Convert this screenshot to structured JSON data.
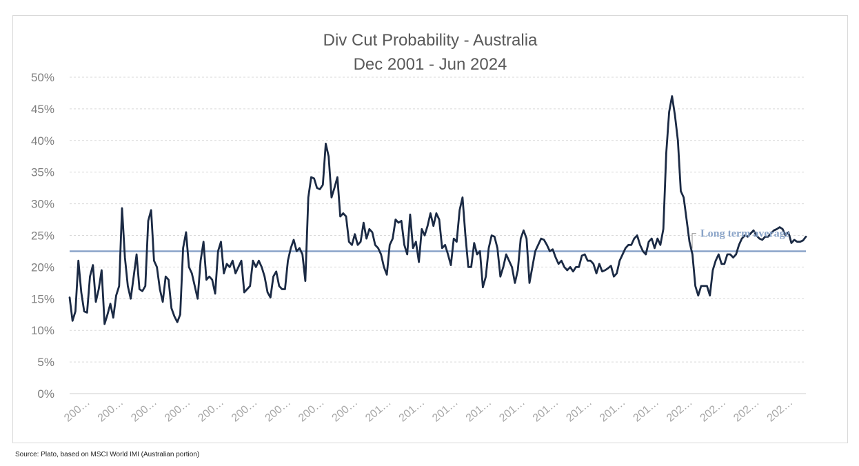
{
  "chart_data": {
    "type": "line",
    "title": "Div Cut Probability - Australia",
    "subtitle": "Dec 2001 - Jun 2024",
    "xlabel": "",
    "ylabel": "",
    "ylim": [
      0,
      50
    ],
    "y_ticks": [
      0,
      5,
      10,
      15,
      20,
      25,
      30,
      35,
      40,
      45,
      50
    ],
    "y_tick_labels": [
      "0%",
      "5%",
      "10%",
      "15%",
      "20%",
      "25%",
      "30%",
      "35%",
      "40%",
      "45%",
      "50%"
    ],
    "x_tick_labels": [
      "200…",
      "200…",
      "200…",
      "200…",
      "200…",
      "200…",
      "200…",
      "200…",
      "200…",
      "201…",
      "201…",
      "201…",
      "201…",
      "201…",
      "201…",
      "201…",
      "201…",
      "201…",
      "202…",
      "202…",
      "202…",
      "202…"
    ],
    "grid": true,
    "series": [
      {
        "name": "Div cut probability",
        "color": "#1b2a44",
        "anchors": [
          [
            0,
            15.2
          ],
          [
            2,
            11.5
          ],
          [
            4,
            13.0
          ],
          [
            6,
            21.0
          ],
          [
            8,
            16.0
          ],
          [
            10,
            13.0
          ],
          [
            12,
            12.8
          ],
          [
            14,
            18.5
          ],
          [
            16,
            20.3
          ],
          [
            18,
            14.5
          ],
          [
            20,
            16.5
          ],
          [
            22,
            19.5
          ],
          [
            24,
            11.0
          ],
          [
            26,
            12.5
          ],
          [
            28,
            14.2
          ],
          [
            30,
            12.0
          ],
          [
            32,
            15.5
          ],
          [
            34,
            17.0
          ],
          [
            36,
            29.3
          ],
          [
            38,
            21.5
          ],
          [
            40,
            17.0
          ],
          [
            42,
            15.0
          ],
          [
            44,
            18.5
          ],
          [
            46,
            22.0
          ],
          [
            48,
            16.5
          ],
          [
            50,
            16.2
          ],
          [
            52,
            17.0
          ],
          [
            54,
            27.3
          ],
          [
            56,
            29.0
          ],
          [
            58,
            21.0
          ],
          [
            60,
            20.0
          ],
          [
            62,
            16.5
          ],
          [
            64,
            14.5
          ],
          [
            66,
            18.5
          ],
          [
            68,
            18.0
          ],
          [
            70,
            13.5
          ],
          [
            72,
            12.2
          ],
          [
            74,
            11.3
          ],
          [
            76,
            12.5
          ],
          [
            78,
            23.0
          ],
          [
            80,
            25.5
          ],
          [
            82,
            20.0
          ],
          [
            84,
            19.0
          ],
          [
            86,
            17.0
          ],
          [
            88,
            15.0
          ],
          [
            90,
            21.0
          ],
          [
            92,
            24.0
          ],
          [
            94,
            18.0
          ],
          [
            96,
            18.5
          ],
          [
            98,
            18.0
          ],
          [
            100,
            15.8
          ],
          [
            102,
            22.5
          ],
          [
            104,
            24.0
          ],
          [
            106,
            19.0
          ],
          [
            108,
            20.5
          ],
          [
            110,
            20.0
          ],
          [
            112,
            21.0
          ],
          [
            114,
            19.0
          ],
          [
            116,
            20.0
          ],
          [
            118,
            21.0
          ],
          [
            120,
            16.0
          ],
          [
            122,
            16.5
          ],
          [
            124,
            17.0
          ],
          [
            126,
            21.0
          ],
          [
            128,
            20.0
          ],
          [
            130,
            21.0
          ],
          [
            132,
            20.0
          ],
          [
            134,
            18.5
          ],
          [
            136,
            16.0
          ],
          [
            138,
            15.2
          ],
          [
            140,
            18.5
          ],
          [
            142,
            19.3
          ],
          [
            144,
            17.0
          ],
          [
            146,
            16.5
          ],
          [
            148,
            16.5
          ],
          [
            150,
            21.0
          ],
          [
            152,
            23.0
          ],
          [
            154,
            24.3
          ],
          [
            156,
            22.5
          ],
          [
            158,
            23.0
          ],
          [
            160,
            22.0
          ],
          [
            162,
            17.8
          ],
          [
            164,
            31.0
          ],
          [
            166,
            34.2
          ],
          [
            168,
            34.0
          ],
          [
            170,
            32.5
          ],
          [
            172,
            32.3
          ],
          [
            174,
            33.0
          ],
          [
            176,
            39.5
          ],
          [
            178,
            37.5
          ],
          [
            180,
            31.0
          ],
          [
            182,
            32.5
          ],
          [
            184,
            34.2
          ],
          [
            186,
            28.0
          ],
          [
            188,
            28.5
          ],
          [
            190,
            28.0
          ],
          [
            192,
            24.0
          ],
          [
            194,
            23.5
          ],
          [
            196,
            25.2
          ],
          [
            198,
            23.5
          ],
          [
            200,
            24.0
          ],
          [
            202,
            27.0
          ],
          [
            204,
            24.5
          ],
          [
            206,
            26.0
          ],
          [
            208,
            25.5
          ],
          [
            210,
            23.5
          ],
          [
            212,
            23.0
          ],
          [
            214,
            22.0
          ],
          [
            216,
            20.0
          ],
          [
            218,
            18.8
          ],
          [
            220,
            23.5
          ],
          [
            222,
            24.5
          ],
          [
            224,
            27.5
          ],
          [
            226,
            27.0
          ],
          [
            228,
            27.3
          ],
          [
            230,
            23.5
          ],
          [
            232,
            22.0
          ],
          [
            234,
            28.3
          ],
          [
            236,
            23.0
          ],
          [
            238,
            24.0
          ],
          [
            240,
            20.8
          ],
          [
            242,
            26.0
          ],
          [
            244,
            25.0
          ],
          [
            246,
            26.5
          ],
          [
            248,
            28.5
          ],
          [
            250,
            26.5
          ],
          [
            252,
            28.5
          ],
          [
            254,
            27.5
          ],
          [
            256,
            23.0
          ],
          [
            258,
            23.5
          ],
          [
            260,
            22.0
          ],
          [
            262,
            20.3
          ],
          [
            264,
            24.5
          ],
          [
            266,
            24.0
          ],
          [
            268,
            29.0
          ],
          [
            270,
            31.0
          ],
          [
            272,
            25.0
          ],
          [
            274,
            20.0
          ],
          [
            276,
            20.0
          ],
          [
            278,
            23.8
          ],
          [
            280,
            22.0
          ],
          [
            282,
            22.5
          ],
          [
            284,
            16.8
          ],
          [
            286,
            18.5
          ],
          [
            288,
            23.0
          ],
          [
            290,
            25.0
          ],
          [
            292,
            24.8
          ],
          [
            294,
            23.0
          ],
          [
            296,
            18.5
          ],
          [
            298,
            20.0
          ],
          [
            300,
            22.0
          ],
          [
            302,
            21.0
          ],
          [
            304,
            20.0
          ],
          [
            306,
            17.5
          ],
          [
            308,
            19.5
          ],
          [
            310,
            24.5
          ],
          [
            312,
            25.8
          ],
          [
            314,
            24.5
          ],
          [
            316,
            17.5
          ],
          [
            318,
            20.0
          ],
          [
            320,
            22.5
          ],
          [
            322,
            23.5
          ],
          [
            324,
            24.5
          ],
          [
            326,
            24.3
          ],
          [
            328,
            23.5
          ],
          [
            330,
            22.5
          ],
          [
            332,
            22.8
          ],
          [
            334,
            21.5
          ],
          [
            336,
            20.5
          ],
          [
            338,
            21.0
          ],
          [
            340,
            20.0
          ],
          [
            342,
            19.5
          ],
          [
            344,
            20.0
          ],
          [
            346,
            19.3
          ],
          [
            348,
            20.0
          ],
          [
            350,
            20.0
          ],
          [
            352,
            21.8
          ],
          [
            354,
            22.0
          ],
          [
            356,
            21.0
          ],
          [
            358,
            21.0
          ],
          [
            360,
            20.5
          ],
          [
            362,
            19.0
          ],
          [
            364,
            20.5
          ],
          [
            366,
            19.3
          ],
          [
            368,
            19.5
          ],
          [
            370,
            19.8
          ],
          [
            372,
            20.2
          ],
          [
            374,
            18.5
          ],
          [
            376,
            19.0
          ],
          [
            378,
            21.0
          ],
          [
            380,
            22.0
          ],
          [
            382,
            23.0
          ],
          [
            384,
            23.5
          ],
          [
            386,
            23.5
          ],
          [
            388,
            24.5
          ],
          [
            390,
            25.0
          ],
          [
            392,
            23.5
          ],
          [
            394,
            22.5
          ],
          [
            396,
            22.0
          ],
          [
            398,
            24.0
          ],
          [
            400,
            24.5
          ],
          [
            402,
            23.0
          ],
          [
            404,
            24.5
          ],
          [
            406,
            23.5
          ],
          [
            408,
            26.0
          ],
          [
            410,
            38.0
          ],
          [
            412,
            44.5
          ],
          [
            414,
            47.0
          ],
          [
            416,
            44.0
          ],
          [
            418,
            40.0
          ],
          [
            420,
            32.0
          ],
          [
            422,
            31.0
          ],
          [
            424,
            27.5
          ],
          [
            426,
            24.0
          ],
          [
            428,
            22.0
          ],
          [
            430,
            17.0
          ],
          [
            432,
            15.5
          ],
          [
            434,
            17.0
          ],
          [
            436,
            17.0
          ],
          [
            438,
            17.0
          ],
          [
            440,
            15.5
          ],
          [
            442,
            19.5
          ],
          [
            444,
            21.0
          ],
          [
            446,
            22.0
          ],
          [
            448,
            20.5
          ],
          [
            450,
            20.5
          ],
          [
            452,
            22.0
          ],
          [
            454,
            22.0
          ],
          [
            456,
            21.5
          ],
          [
            458,
            22.0
          ],
          [
            460,
            23.5
          ],
          [
            462,
            24.5
          ],
          [
            464,
            25.0
          ],
          [
            466,
            24.8
          ],
          [
            468,
            25.3
          ],
          [
            470,
            25.8
          ],
          [
            472,
            25.0
          ],
          [
            474,
            24.5
          ],
          [
            476,
            24.3
          ],
          [
            478,
            24.8
          ],
          [
            480,
            24.8
          ],
          [
            482,
            25.3
          ],
          [
            484,
            25.8
          ],
          [
            486,
            26.0
          ],
          [
            488,
            26.3
          ],
          [
            490,
            26.0
          ],
          [
            492,
            25.0
          ],
          [
            494,
            25.5
          ],
          [
            496,
            23.8
          ],
          [
            498,
            24.3
          ],
          [
            500,
            24.0
          ],
          [
            502,
            24.0
          ],
          [
            504,
            24.2
          ],
          [
            506,
            24.8
          ]
        ]
      }
    ],
    "reference_line": {
      "label": "Long term average",
      "value": 22.5,
      "color": "#8aa4c8"
    }
  },
  "source_note": "Source: Plato, based on MSCI World IMI (Australian portion)"
}
